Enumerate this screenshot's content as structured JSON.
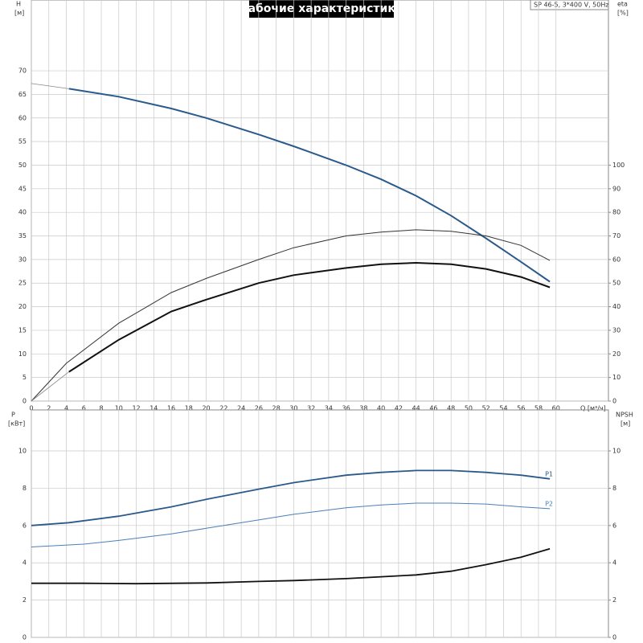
{
  "title": "Рабочие характеристики",
  "model": "SP 46-5, 3*400 V, 50Hz",
  "chart_data": [
    {
      "type": "line",
      "y_label": "H",
      "y_unit": "[м]",
      "y2_label": "eta",
      "y2_unit": "[%]",
      "x_label": "Q [м³/ч]",
      "xlim": [
        0,
        66
      ],
      "xticks": [
        0,
        2,
        4,
        6,
        8,
        10,
        12,
        14,
        16,
        18,
        20,
        22,
        24,
        26,
        28,
        30,
        32,
        34,
        36,
        38,
        40,
        42,
        44,
        46,
        48,
        50,
        52,
        54,
        56,
        58,
        60
      ],
      "ylim": [
        0,
        85
      ],
      "yticks": [
        0,
        5,
        10,
        15,
        20,
        25,
        30,
        35,
        40,
        45,
        50,
        55,
        60,
        65,
        70
      ],
      "y2lim": [
        0,
        170
      ],
      "y2ticks": [
        0,
        10,
        20,
        30,
        40,
        50,
        60,
        70,
        80,
        90,
        100
      ],
      "grid": true,
      "series": [
        {
          "color": "#888888",
          "width": 0.8,
          "x": [
            0,
            4.3
          ],
          "values": [
            67.3,
            66.2
          ]
        },
        {
          "color": "#2a5a8c",
          "width": 2,
          "x": [
            4.3,
            10,
            16,
            20,
            26,
            30,
            36,
            40,
            44,
            48,
            52,
            56,
            59.3
          ],
          "values": [
            66.2,
            64.5,
            62,
            60,
            56.5,
            54,
            50,
            47,
            43.5,
            39.3,
            34.5,
            29.5,
            25.3
          ]
        },
        {
          "color": "#333333",
          "width": 1,
          "axis": "y2",
          "x": [
            0,
            4,
            10,
            16,
            20,
            26,
            30,
            36,
            40,
            44,
            48,
            52,
            56,
            59.3
          ],
          "values": [
            0,
            16,
            33,
            46,
            52,
            60,
            65,
            70,
            71.6,
            72.6,
            72,
            70,
            66,
            59.6
          ]
        },
        {
          "color": "#888888",
          "width": 0.8,
          "axis": "y2",
          "x": [
            0,
            4.3
          ],
          "values": [
            0,
            12.4
          ]
        },
        {
          "color": "#111111",
          "width": 2,
          "axis": "y2",
          "x": [
            4.3,
            10,
            16,
            20,
            26,
            30,
            36,
            40,
            44,
            48,
            52,
            56,
            59.3
          ],
          "values": [
            12.4,
            26,
            38,
            43,
            50,
            53.4,
            56.4,
            58,
            58.6,
            58,
            56,
            52.6,
            48.2
          ]
        }
      ]
    },
    {
      "type": "line",
      "y_label": "P",
      "y_unit": "[кВт]",
      "y2_label": "NPSH",
      "y2_unit": "[м]",
      "xlim": [
        0,
        66
      ],
      "ylim": [
        0,
        12.2
      ],
      "yticks": [
        0,
        2,
        4,
        6,
        8,
        10
      ],
      "y2lim": [
        0,
        12.2
      ],
      "y2ticks": [
        0,
        2,
        4,
        6,
        8,
        10
      ],
      "grid": true,
      "series": [
        {
          "name": "P1",
          "color": "#2a5a8c",
          "width": 1.8,
          "x": [
            0,
            4.3,
            10,
            16,
            20,
            26,
            30,
            36,
            40,
            44,
            48,
            52,
            56,
            59.3
          ],
          "values": [
            6.0,
            6.15,
            6.5,
            7.0,
            7.4,
            7.95,
            8.3,
            8.7,
            8.85,
            8.95,
            8.95,
            8.85,
            8.7,
            8.5
          ]
        },
        {
          "name": "P2",
          "color": "#4a7fb8",
          "width": 1,
          "x": [
            0,
            6,
            10,
            16,
            20,
            26,
            30,
            36,
            40,
            44,
            48,
            52,
            56,
            59.3
          ],
          "values": [
            4.85,
            5.0,
            5.2,
            5.55,
            5.85,
            6.3,
            6.6,
            6.95,
            7.1,
            7.2,
            7.2,
            7.15,
            7.0,
            6.9
          ]
        },
        {
          "color": "#111111",
          "width": 1.8,
          "axis": "y2",
          "x": [
            0,
            6,
            12,
            20,
            26,
            30,
            36,
            40,
            44,
            48,
            52,
            56,
            59.3
          ],
          "values": [
            2.9,
            2.9,
            2.88,
            2.92,
            3.0,
            3.05,
            3.15,
            3.25,
            3.35,
            3.55,
            3.9,
            4.3,
            4.75
          ]
        }
      ]
    }
  ]
}
